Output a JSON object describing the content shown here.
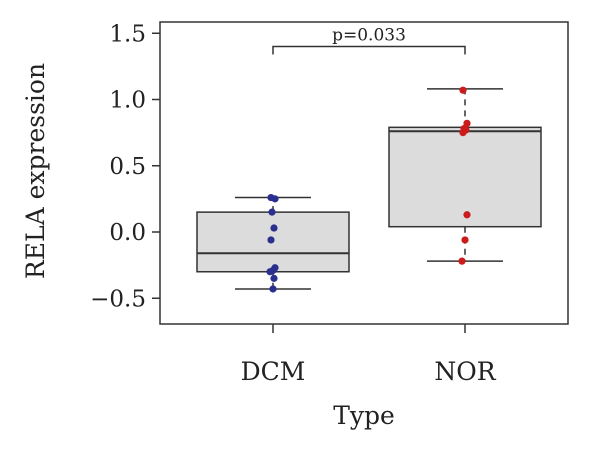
{
  "chart_data": {
    "type": "box",
    "xlabel": "Type",
    "ylabel": "RELA expression",
    "ylim": [
      -0.7,
      1.6
    ],
    "yticks": [
      -0.5,
      0.0,
      0.5,
      1.0,
      1.5
    ],
    "ytick_labels": [
      "−0.5",
      "0.0",
      "0.5",
      "1.0",
      "1.5"
    ],
    "grid": false,
    "annotation": {
      "text": "p=0.033",
      "between": [
        "DCM",
        "NOR"
      ],
      "y": 1.4
    },
    "groups": [
      {
        "name": "DCM",
        "color": "#2b2f8f",
        "box": {
          "whisker_low": -0.43,
          "q1": -0.3,
          "median": -0.16,
          "q3": 0.15,
          "whisker_high": 0.26
        },
        "points": [
          0.26,
          0.25,
          0.15,
          0.03,
          -0.06,
          -0.27,
          -0.29,
          -0.3,
          -0.35,
          -0.43
        ]
      },
      {
        "name": "NOR",
        "color": "#cc1b1b",
        "box": {
          "whisker_low": -0.22,
          "q1": 0.04,
          "median": 0.76,
          "q3": 0.79,
          "whisker_high": 1.08
        },
        "points": [
          1.07,
          0.82,
          0.78,
          0.77,
          0.75,
          0.13,
          -0.06,
          -0.22
        ]
      }
    ],
    "box_fill": "#dcdcdc",
    "line_color": "#333333"
  }
}
